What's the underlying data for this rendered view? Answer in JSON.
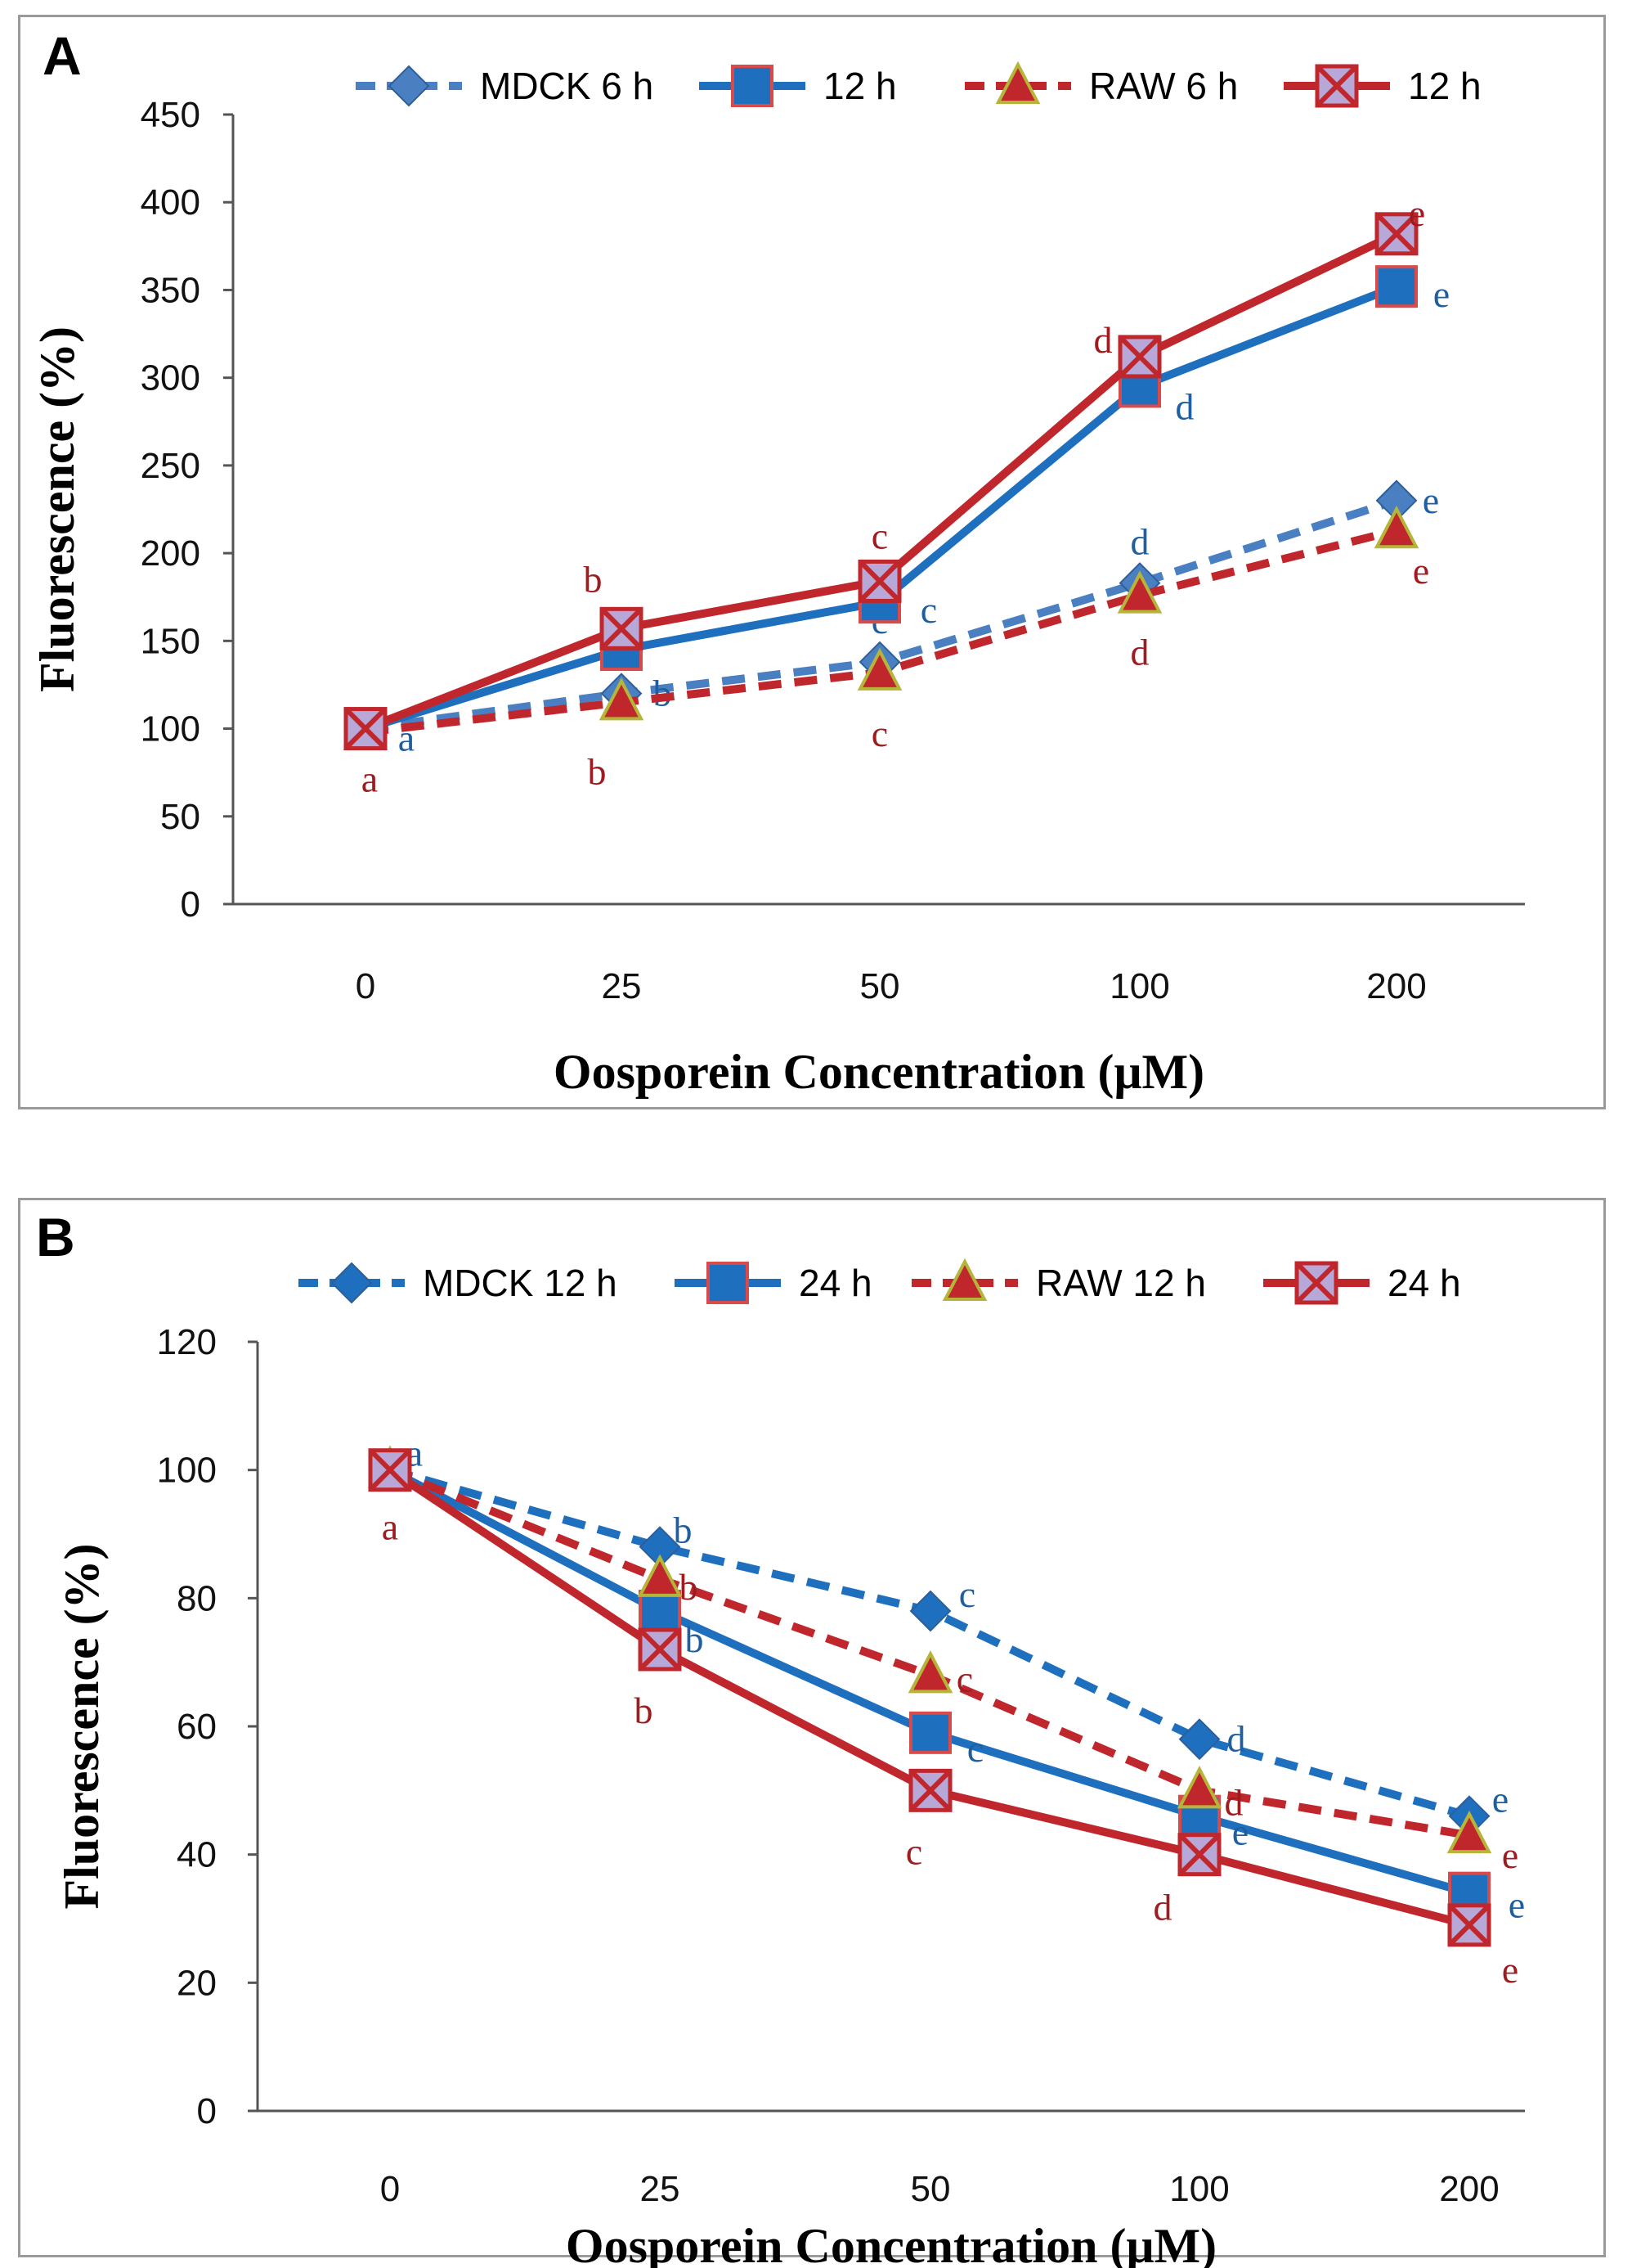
{
  "panels": {
    "a": {
      "label": "A"
    },
    "b": {
      "label": "B"
    }
  },
  "chart_data": [
    {
      "type": "line",
      "panel": "A",
      "categories": [
        "0",
        "25",
        "50",
        "100",
        "200"
      ],
      "ylim": [
        0,
        450
      ],
      "yticks": [
        0,
        50,
        100,
        150,
        200,
        250,
        300,
        350,
        400,
        450
      ],
      "xlabel": "Oosporein Concentration (μM)",
      "ylabel": "Fluorescence (%)",
      "legend_position": "top",
      "series": [
        {
          "name": "MDCK 6 h",
          "color": "#4a7fc1",
          "dashed": true,
          "marker": "diamond",
          "values": [
            100,
            120,
            138,
            183,
            230
          ],
          "letters": [
            "a",
            "b",
            "c",
            "d",
            "e"
          ]
        },
        {
          "name": "12 h",
          "color": "#1f6fbf",
          "dashed": false,
          "marker": "square",
          "values": [
            100,
            145,
            172,
            295,
            352
          ],
          "letters": [
            "",
            "",
            "c",
            "d",
            "e"
          ]
        },
        {
          "name": "RAW 6 h",
          "color": "#c0272d",
          "dashed": true,
          "marker": "triangle",
          "values": [
            98,
            115,
            132,
            176,
            213
          ],
          "letters": [
            "",
            "b",
            "c",
            "d",
            "e"
          ]
        },
        {
          "name": "12 h",
          "color": "#c0272d",
          "dashed": false,
          "marker": "x-square",
          "values": [
            100,
            157,
            184,
            312,
            382
          ],
          "letters": [
            "a",
            "b",
            "c",
            "d",
            "e"
          ]
        }
      ]
    },
    {
      "type": "line",
      "panel": "B",
      "categories": [
        "0",
        "25",
        "50",
        "100",
        "200"
      ],
      "ylim": [
        0,
        120
      ],
      "yticks": [
        0,
        20,
        40,
        60,
        80,
        100,
        120
      ],
      "xlabel": "Oosporein Concentration (μM)",
      "ylabel": "Fluorescence (%)",
      "legend_position": "top",
      "series": [
        {
          "name": "MDCK 12 h",
          "color": "#1f6fbf",
          "dashed": true,
          "marker": "diamond",
          "values": [
            100,
            88,
            78,
            58,
            46
          ],
          "letters": [
            "a",
            "b",
            "c",
            "d",
            "e"
          ]
        },
        {
          "name": "24 h",
          "color": "#1f6fbf",
          "dashed": false,
          "marker": "square",
          "values": [
            100,
            78,
            59,
            46,
            34
          ],
          "letters": [
            "",
            "b",
            "c",
            "e",
            "e"
          ]
        },
        {
          "name": "RAW 12 h",
          "color": "#c0272d",
          "dashed": true,
          "marker": "triangle",
          "values": [
            100,
            83,
            68,
            50,
            43
          ],
          "letters": [
            "",
            "b",
            "c",
            "d",
            "e"
          ]
        },
        {
          "name": "24 h",
          "color": "#c0272d",
          "dashed": false,
          "marker": "x-square",
          "values": [
            100,
            72,
            50,
            40,
            29
          ],
          "letters": [
            "a",
            "b",
            "c",
            "d",
            "e"
          ]
        }
      ]
    }
  ]
}
